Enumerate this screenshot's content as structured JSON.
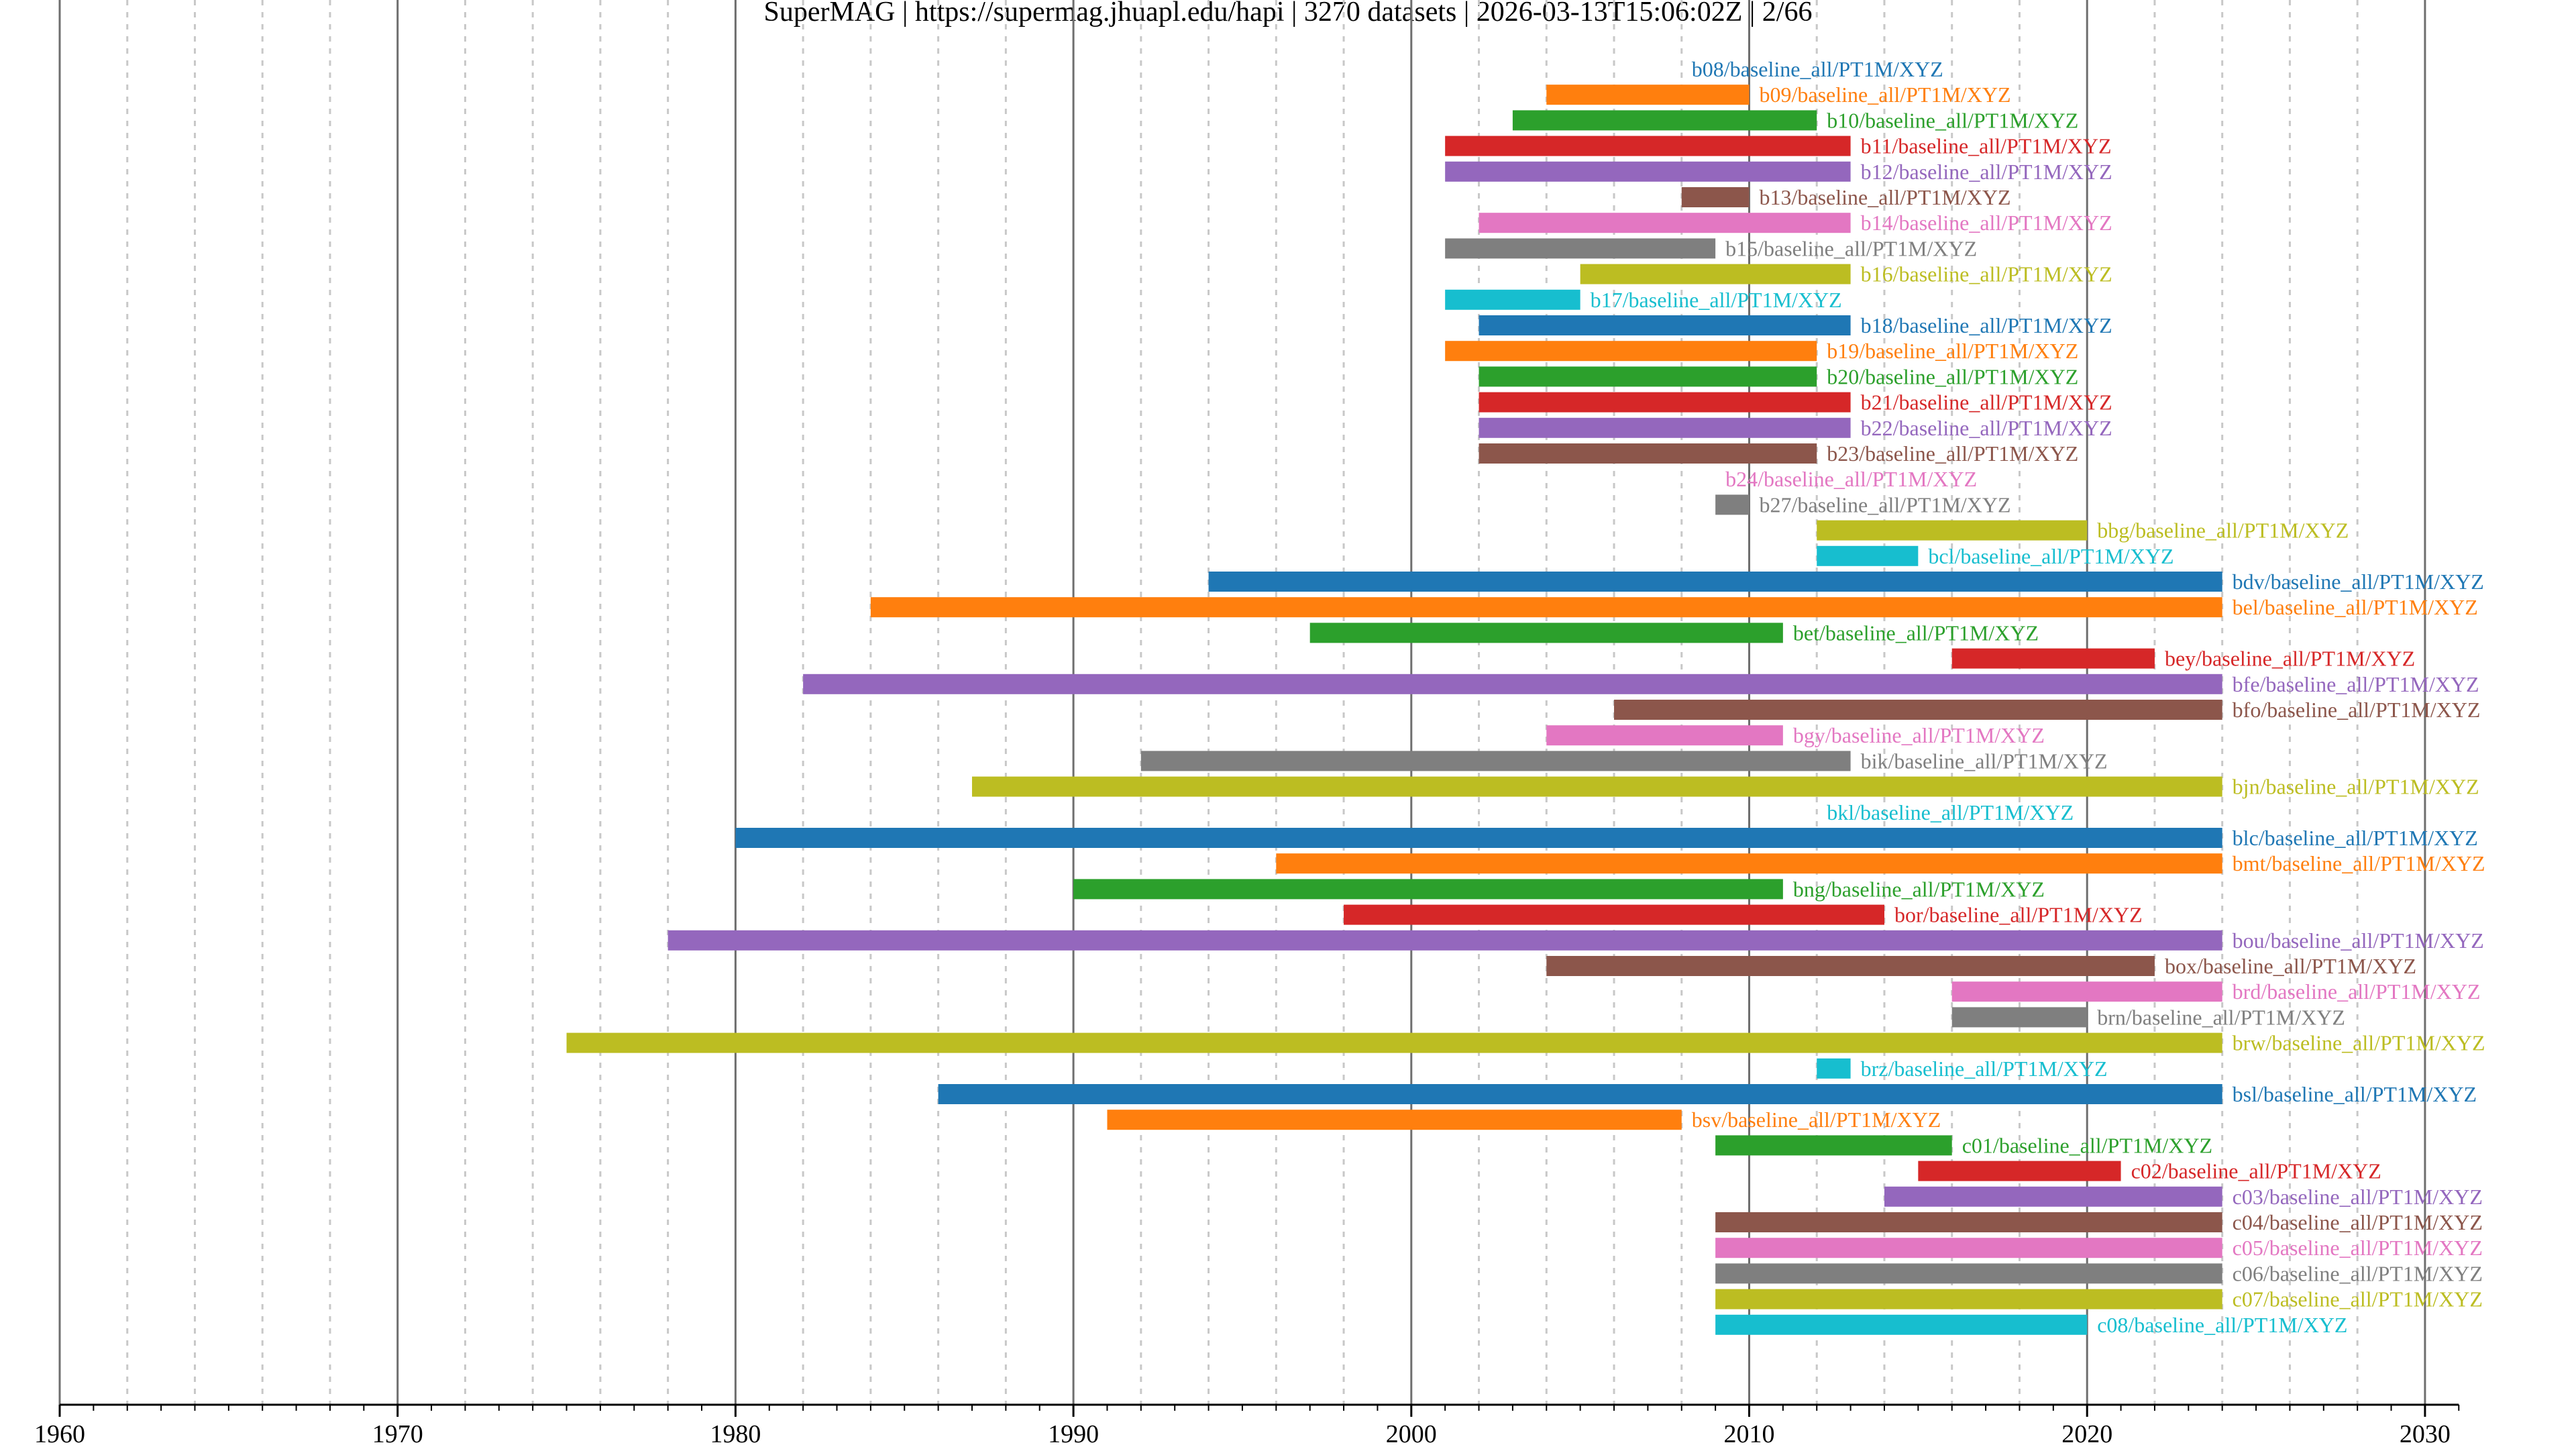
{
  "chart_data": {
    "type": "bar",
    "orientation": "horizontal-timeline",
    "title": "SuperMAG | https://supermag.jhuapl.edu/hapi | 3270 datasets | 2026-03-13T15:06:02Z | 2/66",
    "xlabel": "",
    "ylabel": "",
    "xlim": [
      1960,
      2031
    ],
    "xticks": [
      "1960",
      "1970",
      "1980",
      "1990",
      "2000",
      "2010",
      "2020",
      "2030"
    ],
    "grid": {
      "major_years": 10,
      "minor_years": 2,
      "minor_style": "dashed"
    },
    "palette": [
      "#1f77b4",
      "#ff7f0e",
      "#2ca02c",
      "#d62728",
      "#9467bd",
      "#8c564b",
      "#e377c2",
      "#7f7f7f",
      "#bcbd22",
      "#17becf"
    ],
    "series": [
      {
        "label": "b08/baseline_all/PT1M/XYZ",
        "start": 2008,
        "end": 2008
      },
      {
        "label": "b09/baseline_all/PT1M/XYZ",
        "start": 2004,
        "end": 2010
      },
      {
        "label": "b10/baseline_all/PT1M/XYZ",
        "start": 2003,
        "end": 2012
      },
      {
        "label": "b11/baseline_all/PT1M/XYZ",
        "start": 2001,
        "end": 2013
      },
      {
        "label": "b12/baseline_all/PT1M/XYZ",
        "start": 2001,
        "end": 2013
      },
      {
        "label": "b13/baseline_all/PT1M/XYZ",
        "start": 2008,
        "end": 2010
      },
      {
        "label": "b14/baseline_all/PT1M/XYZ",
        "start": 2002,
        "end": 2013
      },
      {
        "label": "b15/baseline_all/PT1M/XYZ",
        "start": 2001,
        "end": 2009
      },
      {
        "label": "b16/baseline_all/PT1M/XYZ",
        "start": 2005,
        "end": 2013
      },
      {
        "label": "b17/baseline_all/PT1M/XYZ",
        "start": 2001,
        "end": 2005
      },
      {
        "label": "b18/baseline_all/PT1M/XYZ",
        "start": 2002,
        "end": 2013
      },
      {
        "label": "b19/baseline_all/PT1M/XYZ",
        "start": 2001,
        "end": 2012
      },
      {
        "label": "b20/baseline_all/PT1M/XYZ",
        "start": 2002,
        "end": 2012
      },
      {
        "label": "b21/baseline_all/PT1M/XYZ",
        "start": 2002,
        "end": 2013
      },
      {
        "label": "b22/baseline_all/PT1M/XYZ",
        "start": 2002,
        "end": 2013
      },
      {
        "label": "b23/baseline_all/PT1M/XYZ",
        "start": 2002,
        "end": 2012
      },
      {
        "label": "b24/baseline_all/PT1M/XYZ",
        "start": 2009,
        "end": 2009
      },
      {
        "label": "b27/baseline_all/PT1M/XYZ",
        "start": 2009,
        "end": 2010
      },
      {
        "label": "bbg/baseline_all/PT1M/XYZ",
        "start": 2012,
        "end": 2020
      },
      {
        "label": "bcl/baseline_all/PT1M/XYZ",
        "start": 2012,
        "end": 2015
      },
      {
        "label": "bdv/baseline_all/PT1M/XYZ",
        "start": 1994,
        "end": 2024
      },
      {
        "label": "bel/baseline_all/PT1M/XYZ",
        "start": 1984,
        "end": 2024
      },
      {
        "label": "bet/baseline_all/PT1M/XYZ",
        "start": 1997,
        "end": 2011
      },
      {
        "label": "bey/baseline_all/PT1M/XYZ",
        "start": 2016,
        "end": 2022
      },
      {
        "label": "bfe/baseline_all/PT1M/XYZ",
        "start": 1982,
        "end": 2024
      },
      {
        "label": "bfo/baseline_all/PT1M/XYZ",
        "start": 2006,
        "end": 2024
      },
      {
        "label": "bgy/baseline_all/PT1M/XYZ",
        "start": 2004,
        "end": 2011
      },
      {
        "label": "bik/baseline_all/PT1M/XYZ",
        "start": 1992,
        "end": 2013
      },
      {
        "label": "bjn/baseline_all/PT1M/XYZ",
        "start": 1987,
        "end": 2024
      },
      {
        "label": "bkl/baseline_all/PT1M/XYZ",
        "start": 2012,
        "end": 2012
      },
      {
        "label": "blc/baseline_all/PT1M/XYZ",
        "start": 1980,
        "end": 2024
      },
      {
        "label": "bmt/baseline_all/PT1M/XYZ",
        "start": 1996,
        "end": 2024
      },
      {
        "label": "bng/baseline_all/PT1M/XYZ",
        "start": 1990,
        "end": 2011
      },
      {
        "label": "bor/baseline_all/PT1M/XYZ",
        "start": 1998,
        "end": 2014
      },
      {
        "label": "bou/baseline_all/PT1M/XYZ",
        "start": 1978,
        "end": 2024
      },
      {
        "label": "box/baseline_all/PT1M/XYZ",
        "start": 2004,
        "end": 2022
      },
      {
        "label": "brd/baseline_all/PT1M/XYZ",
        "start": 2016,
        "end": 2024
      },
      {
        "label": "brn/baseline_all/PT1M/XYZ",
        "start": 2016,
        "end": 2020
      },
      {
        "label": "brw/baseline_all/PT1M/XYZ",
        "start": 1975,
        "end": 2024
      },
      {
        "label": "brz/baseline_all/PT1M/XYZ",
        "start": 2012,
        "end": 2013
      },
      {
        "label": "bsl/baseline_all/PT1M/XYZ",
        "start": 1986,
        "end": 2024
      },
      {
        "label": "bsv/baseline_all/PT1M/XYZ",
        "start": 1991,
        "end": 2008
      },
      {
        "label": "c01/baseline_all/PT1M/XYZ",
        "start": 2009,
        "end": 2016
      },
      {
        "label": "c02/baseline_all/PT1M/XYZ",
        "start": 2015,
        "end": 2021
      },
      {
        "label": "c03/baseline_all/PT1M/XYZ",
        "start": 2014,
        "end": 2024
      },
      {
        "label": "c04/baseline_all/PT1M/XYZ",
        "start": 2009,
        "end": 2024
      },
      {
        "label": "c05/baseline_all/PT1M/XYZ",
        "start": 2009,
        "end": 2024
      },
      {
        "label": "c06/baseline_all/PT1M/XYZ",
        "start": 2009,
        "end": 2024
      },
      {
        "label": "c07/baseline_all/PT1M/XYZ",
        "start": 2009,
        "end": 2024
      },
      {
        "label": "c08/baseline_all/PT1M/XYZ",
        "start": 2009,
        "end": 2020
      }
    ]
  }
}
